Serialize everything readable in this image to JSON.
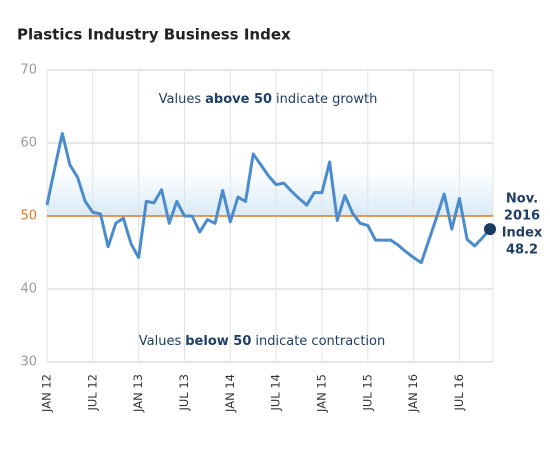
{
  "chart_data": {
    "type": "line",
    "title": "Plastics Industry Business Index",
    "categories": [
      "JAN 12",
      null,
      null,
      null,
      null,
      null,
      "JUL 12",
      null,
      null,
      null,
      null,
      null,
      "JAN 13",
      null,
      null,
      null,
      null,
      null,
      "JUL 13",
      null,
      null,
      null,
      null,
      null,
      "JAN 14",
      null,
      null,
      null,
      null,
      null,
      "JUL 14",
      null,
      null,
      null,
      null,
      null,
      "JAN 15",
      null,
      null,
      null,
      null,
      null,
      "JUL 15",
      null,
      null,
      null,
      null,
      null,
      "JAN 16",
      null,
      null,
      null,
      null,
      null,
      "JUL 16",
      null,
      null,
      null,
      null
    ],
    "series": [
      {
        "name": "Index",
        "color": "#4a8ccc",
        "values": [
          51.5,
          56.5,
          61.3,
          57,
          55.3,
          52,
          50.5,
          50.3,
          45.8,
          49,
          49.7,
          46.2,
          44.3,
          52,
          51.8,
          53.6,
          49,
          52,
          50,
          50,
          47.8,
          49.5,
          49,
          53.5,
          49.2,
          52.6,
          52,
          58.5,
          57,
          55.5,
          54.3,
          54.5,
          53.4,
          52.4,
          51.5,
          53.2,
          53.2,
          57.4,
          49.4,
          52.8,
          50.4,
          49,
          48.7,
          46.7,
          46.7,
          46.7,
          46,
          45.1,
          44.3,
          43.6,
          46.7,
          49.8,
          53,
          48.2,
          52.4,
          46.8,
          45.9,
          47,
          48.2
        ]
      }
    ],
    "ylim": [
      30,
      70
    ],
    "yticks": [
      30,
      40,
      50,
      60,
      70
    ],
    "grid": true,
    "reference_line": 50,
    "reference_color": "#e07a1f",
    "annotations": [
      {
        "pre": "Values",
        "bold": "above 50",
        "post": "indicate growth"
      },
      {
        "pre": "Values",
        "bold": "below 50",
        "post": "indicate contraction"
      }
    ],
    "callout": {
      "lines": [
        "Nov.",
        "2016",
        "Index"
      ],
      "color": "#1a3a5e"
    }
  }
}
